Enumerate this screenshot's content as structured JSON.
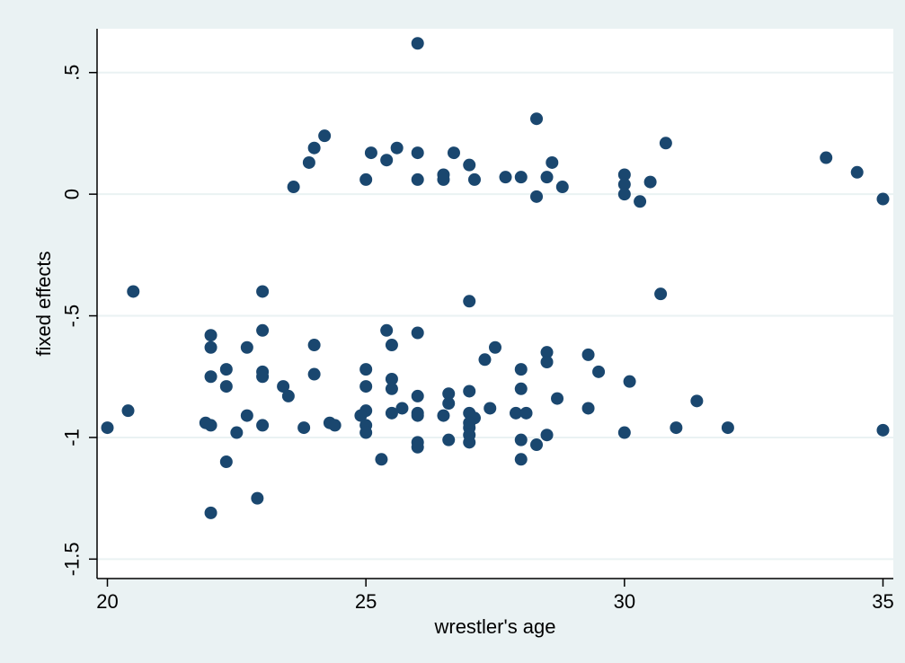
{
  "colors": {
    "outer_background": "#eaf2f3",
    "plot_background": "#ffffff",
    "grid": "#eaf2f3",
    "axis": "#000000",
    "marker": "#1a476f"
  },
  "chart_data": {
    "type": "scatter",
    "title": "",
    "xlabel": "wrestler's age",
    "ylabel": "fixed effects",
    "xlim": [
      19.8,
      35.2
    ],
    "ylim": [
      -1.58,
      0.68
    ],
    "x_ticks": [
      20,
      25,
      30,
      35
    ],
    "x_tick_labels": [
      "20",
      "25",
      "30",
      "35"
    ],
    "y_ticks": [
      0.5,
      0,
      -0.5,
      -1,
      -1.5
    ],
    "y_tick_labels": [
      ".5",
      "0",
      "-.5",
      "-1",
      "-1.5"
    ],
    "grid": "horizontal",
    "legend": "none",
    "series": [
      {
        "points": [
          [
            26.0,
            0.62
          ],
          [
            28.3,
            0.31
          ],
          [
            24.2,
            0.24
          ],
          [
            30.8,
            0.21
          ],
          [
            24.0,
            0.19
          ],
          [
            25.6,
            0.19
          ],
          [
            25.1,
            0.17
          ],
          [
            26.0,
            0.17
          ],
          [
            26.7,
            0.17
          ],
          [
            33.9,
            0.15
          ],
          [
            25.4,
            0.14
          ],
          [
            23.9,
            0.13
          ],
          [
            28.6,
            0.13
          ],
          [
            27.0,
            0.12
          ],
          [
            34.5,
            0.09
          ],
          [
            26.5,
            0.08
          ],
          [
            30.0,
            0.08
          ],
          [
            27.7,
            0.07
          ],
          [
            28.0,
            0.07
          ],
          [
            28.5,
            0.07
          ],
          [
            25.0,
            0.06
          ],
          [
            26.0,
            0.06
          ],
          [
            26.5,
            0.06
          ],
          [
            27.1,
            0.06
          ],
          [
            30.0,
            0.04
          ],
          [
            30.5,
            0.05
          ],
          [
            23.6,
            0.03
          ],
          [
            28.8,
            0.03
          ],
          [
            30.0,
            0.0
          ],
          [
            28.3,
            -0.01
          ],
          [
            30.3,
            -0.03
          ],
          [
            35.0,
            -0.02
          ],
          [
            20.5,
            -0.4
          ],
          [
            23.0,
            -0.4
          ],
          [
            27.0,
            -0.44
          ],
          [
            30.7,
            -0.41
          ],
          [
            22.0,
            -0.58
          ],
          [
            23.0,
            -0.56
          ],
          [
            25.4,
            -0.56
          ],
          [
            26.0,
            -0.57
          ],
          [
            22.0,
            -0.63
          ],
          [
            22.7,
            -0.63
          ],
          [
            24.0,
            -0.62
          ],
          [
            25.5,
            -0.62
          ],
          [
            27.5,
            -0.63
          ],
          [
            28.5,
            -0.65
          ],
          [
            29.3,
            -0.66
          ],
          [
            27.3,
            -0.68
          ],
          [
            28.5,
            -0.69
          ],
          [
            22.3,
            -0.72
          ],
          [
            23.0,
            -0.73
          ],
          [
            25.0,
            -0.72
          ],
          [
            28.0,
            -0.72
          ],
          [
            29.5,
            -0.73
          ],
          [
            22.0,
            -0.75
          ],
          [
            23.0,
            -0.75
          ],
          [
            24.0,
            -0.74
          ],
          [
            25.5,
            -0.76
          ],
          [
            30.1,
            -0.77
          ],
          [
            22.3,
            -0.79
          ],
          [
            23.4,
            -0.79
          ],
          [
            25.0,
            -0.79
          ],
          [
            25.5,
            -0.8
          ],
          [
            28.0,
            -0.8
          ],
          [
            23.5,
            -0.83
          ],
          [
            26.0,
            -0.83
          ],
          [
            26.6,
            -0.82
          ],
          [
            27.0,
            -0.81
          ],
          [
            26.6,
            -0.86
          ],
          [
            28.7,
            -0.84
          ],
          [
            31.4,
            -0.85
          ],
          [
            25.7,
            -0.88
          ],
          [
            27.4,
            -0.88
          ],
          [
            29.3,
            -0.88
          ],
          [
            20.4,
            -0.89
          ],
          [
            25.0,
            -0.89
          ],
          [
            25.5,
            -0.9
          ],
          [
            26.0,
            -0.9
          ],
          [
            26.5,
            -0.91
          ],
          [
            27.0,
            -0.9
          ],
          [
            27.1,
            -0.92
          ],
          [
            27.9,
            -0.9
          ],
          [
            28.1,
            -0.9
          ],
          [
            22.7,
            -0.91
          ],
          [
            24.9,
            -0.91
          ],
          [
            26.0,
            -0.91
          ],
          [
            27.0,
            -0.94
          ],
          [
            21.9,
            -0.94
          ],
          [
            22.0,
            -0.95
          ],
          [
            23.0,
            -0.95
          ],
          [
            24.3,
            -0.94
          ],
          [
            24.4,
            -0.95
          ],
          [
            25.0,
            -0.95
          ],
          [
            20.0,
            -0.96
          ],
          [
            23.8,
            -0.96
          ],
          [
            31.0,
            -0.96
          ],
          [
            32.0,
            -0.96
          ],
          [
            27.0,
            -0.96
          ],
          [
            25.0,
            -0.98
          ],
          [
            22.5,
            -0.98
          ],
          [
            27.0,
            -0.99
          ],
          [
            28.5,
            -0.99
          ],
          [
            30.0,
            -0.98
          ],
          [
            35.0,
            -0.97
          ],
          [
            26.0,
            -1.02
          ],
          [
            26.6,
            -1.01
          ],
          [
            27.0,
            -1.02
          ],
          [
            28.0,
            -1.01
          ],
          [
            28.3,
            -1.03
          ],
          [
            26.0,
            -1.04
          ],
          [
            22.3,
            -1.1
          ],
          [
            25.3,
            -1.09
          ],
          [
            28.0,
            -1.09
          ],
          [
            22.9,
            -1.25
          ],
          [
            22.0,
            -1.31
          ]
        ]
      }
    ]
  }
}
